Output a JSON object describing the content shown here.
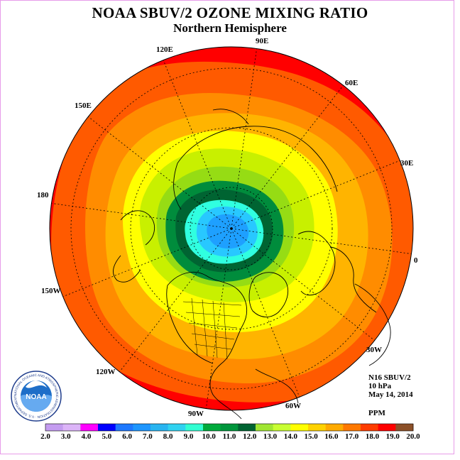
{
  "title": "NOAA SBUV/2 OZONE MIXING RATIO",
  "subtitle": "Northern Hemisphere",
  "info": {
    "instrument": "N16 SBUV/2",
    "level": "10 hPa",
    "date": "May 14, 2014",
    "units": "PPM"
  },
  "longitude_labels": [
    {
      "id": "90E",
      "text": "90E"
    },
    {
      "id": "60E",
      "text": "60E"
    },
    {
      "id": "30E",
      "text": "30E"
    },
    {
      "id": "0",
      "text": "0"
    },
    {
      "id": "30W",
      "text": "30W"
    },
    {
      "id": "60W",
      "text": "60W"
    },
    {
      "id": "90W",
      "text": "90W"
    },
    {
      "id": "120W",
      "text": "120W"
    },
    {
      "id": "150W",
      "text": "150W"
    },
    {
      "id": "180",
      "text": "180"
    },
    {
      "id": "150E",
      "text": "150E"
    },
    {
      "id": "120E",
      "text": "120E"
    }
  ],
  "legend": {
    "ticks": [
      "2.0",
      "3.0",
      "4.0",
      "5.0",
      "6.0",
      "7.0",
      "8.0",
      "9.0",
      "10.0",
      "11.0",
      "12.0",
      "13.0",
      "14.0",
      "15.0",
      "16.0",
      "17.0",
      "18.0",
      "19.0",
      "20.0"
    ],
    "colors": [
      "#c49cf0",
      "#dcb4f8",
      "#ff00ff",
      "#0000ff",
      "#1e78ff",
      "#1e96ff",
      "#28b4f0",
      "#30d2f0",
      "#32ffd2",
      "#00aa3c",
      "#00963c",
      "#006432",
      "#a0e632",
      "#c8ff32",
      "#ffff00",
      "#ffd200",
      "#ffaa00",
      "#ff7800",
      "#ff3c00",
      "#ff0000",
      "#8c5028"
    ]
  },
  "logo": {
    "text": "NOAA",
    "ring_text": "NATIONAL OCEANIC AND ATMOSPHERIC ADMINISTRATION · U.S. DEPARTMENT OF COMMERCE"
  },
  "colors": {
    "r18_19": "#ff0000",
    "r17_18": "#ff5a00",
    "r16_17": "#ff8c00",
    "r15_16": "#ffb400",
    "r14_15": "#ffff00",
    "r13_14": "#c8f000",
    "r12_13": "#96dc14",
    "r11_12": "#008c3c",
    "r10_11": "#006432",
    "r9_10": "#30ffe0",
    "r8_9": "#28c8ff",
    "r7_8": "#1ea0ff"
  }
}
